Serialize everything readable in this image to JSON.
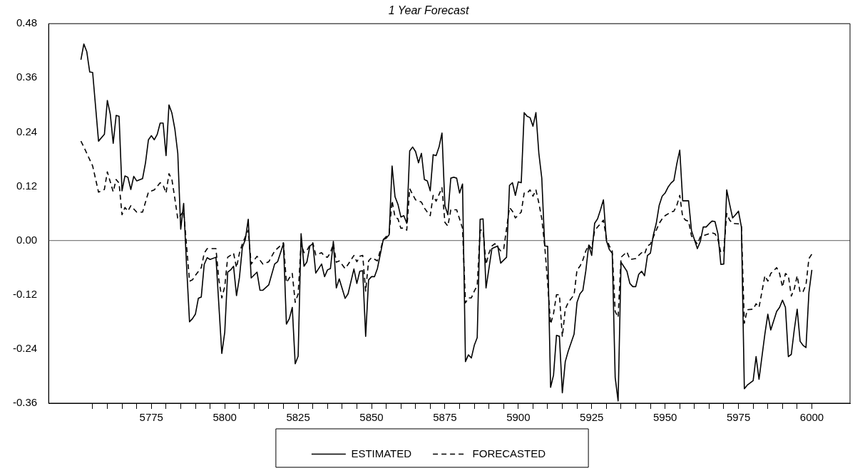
{
  "chart_data": {
    "type": "line",
    "title": "1 Year Forecast",
    "legend": "bottom",
    "marker": "none",
    "xlim": [
      5740,
      6013
    ],
    "ylim": [
      -0.36,
      0.48
    ],
    "xticks": [
      {
        "value": 5755,
        "label": null
      },
      {
        "value": 5760,
        "label": null
      },
      {
        "value": 5765,
        "label": null
      },
      {
        "value": 5770,
        "label": null
      },
      5775,
      {
        "value": 5780,
        "label": null
      },
      {
        "value": 5785,
        "label": null
      },
      {
        "value": 5790,
        "label": null
      },
      {
        "value": 5795,
        "label": null
      },
      5800,
      {
        "value": 5805,
        "label": null
      },
      {
        "value": 5810,
        "label": null
      },
      {
        "value": 5815,
        "label": null
      },
      {
        "value": 5820,
        "label": null
      },
      5825,
      {
        "value": 5830,
        "label": null
      },
      {
        "value": 5835,
        "label": null
      },
      {
        "value": 5840,
        "label": null
      },
      {
        "value": 5845,
        "label": null
      },
      5850,
      {
        "value": 5855,
        "label": null
      },
      {
        "value": 5860,
        "label": null
      },
      {
        "value": 5865,
        "label": null
      },
      {
        "value": 5870,
        "label": null
      },
      5875,
      {
        "value": 5880,
        "label": null
      },
      {
        "value": 5885,
        "label": null
      },
      {
        "value": 5890,
        "label": null
      },
      {
        "value": 5895,
        "label": null
      },
      5900,
      {
        "value": 5905,
        "label": null
      },
      {
        "value": 5910,
        "label": null
      },
      {
        "value": 5915,
        "label": null
      },
      {
        "value": 5920,
        "label": null
      },
      5925,
      {
        "value": 5930,
        "label": null
      },
      {
        "value": 5935,
        "label": null
      },
      {
        "value": 5940,
        "label": null
      },
      {
        "value": 5945,
        "label": null
      },
      5950,
      {
        "value": 5955,
        "label": null
      },
      {
        "value": 5960,
        "label": null
      },
      {
        "value": 5965,
        "label": null
      },
      {
        "value": 5970,
        "label": null
      },
      5975,
      {
        "value": 5980,
        "label": null
      },
      {
        "value": 5985,
        "label": null
      },
      {
        "value": 5990,
        "label": null
      },
      {
        "value": 5995,
        "label": null
      },
      6000
    ],
    "yticks": [
      {
        "value": -0.36,
        "label": "-0.36"
      },
      {
        "value": -0.24,
        "label": "-0.24"
      },
      {
        "value": -0.12,
        "label": "-0.12"
      },
      {
        "value": 0,
        "label": "0.00"
      },
      {
        "value": 0.12,
        "label": "0.12"
      },
      {
        "value": 0.24,
        "label": "0.24"
      },
      {
        "value": 0.36,
        "label": "0.36"
      },
      {
        "value": 0.48,
        "label": "0.48"
      }
    ],
    "ref_lines": [
      {
        "axis": "y",
        "value": 0,
        "color": "#808080",
        "line_style": "solid"
      }
    ],
    "series": [
      {
        "name": "ESTIMATED",
        "color": "#000000",
        "line_style": "solid",
        "x": [
          5751,
          5752,
          5753,
          5754,
          5755,
          5757,
          5759,
          5760,
          5761,
          5762,
          5763,
          5764,
          5765,
          5766,
          5767,
          5768,
          5769,
          5770,
          5772,
          5773,
          5774,
          5775,
          5776,
          5777,
          5778,
          5779,
          5780,
          5781,
          5782,
          5783,
          5784,
          5785,
          5786,
          5787,
          5788,
          5789,
          5790,
          5791,
          5792,
          5793,
          5794,
          5795,
          5797,
          5799,
          5800,
          5801,
          5802,
          5803,
          5804,
          5805,
          5806,
          5807,
          5808,
          5809,
          5811,
          5812,
          5813,
          5815,
          5817,
          5818,
          5820,
          5821,
          5822,
          5823,
          5824,
          5825,
          5826,
          5827,
          5828,
          5829,
          5830,
          5831,
          5833,
          5834,
          5835,
          5836,
          5837,
          5838,
          5839,
          5841,
          5842,
          5844,
          5845,
          5846,
          5847,
          5848,
          5849,
          5850,
          5851,
          5852,
          5854,
          5855,
          5856,
          5857,
          5858,
          5859,
          5860,
          5861,
          5862,
          5863,
          5864,
          5865,
          5866,
          5867,
          5868,
          5869,
          5870,
          5871,
          5872,
          5873,
          5874,
          5875,
          5876,
          5877,
          5878,
          5879,
          5880,
          5881,
          5882,
          5883,
          5884,
          5885,
          5886,
          5887,
          5888,
          5889,
          5890,
          5891,
          5893,
          5894,
          5896,
          5897,
          5898,
          5899,
          5900,
          5901,
          5902,
          5903,
          5904,
          5905,
          5906,
          5907,
          5908,
          5909,
          5910,
          5911,
          5912,
          5913,
          5914,
          5915,
          5916,
          5917,
          5919,
          5920,
          5921,
          5922,
          5923,
          5924,
          5925,
          5926,
          5927,
          5928,
          5929,
          5930,
          5931,
          5932,
          5933,
          5934,
          5935,
          5937,
          5938,
          5939,
          5940,
          5941,
          5942,
          5943,
          5944,
          5945,
          5946,
          5947,
          5948,
          5949,
          5950,
          5951,
          5952,
          5953,
          5954,
          5955,
          5956,
          5957,
          5958,
          5959,
          5961,
          5962,
          5963,
          5964,
          5965,
          5966,
          5967,
          5968,
          5969,
          5970,
          5971,
          5972,
          5973,
          5974,
          5975,
          5976,
          5977,
          5978,
          5980,
          5981,
          5982,
          5984,
          5985,
          5986,
          5988,
          5989,
          5990,
          5991,
          5992,
          5993,
          5994,
          5995,
          5996,
          5997,
          5998,
          5999,
          6000
        ],
        "values": [
          0.4,
          0.435,
          0.418,
          0.373,
          0.372,
          0.22,
          0.235,
          0.31,
          0.28,
          0.215,
          0.277,
          0.275,
          0.11,
          0.143,
          0.14,
          0.113,
          0.142,
          0.132,
          0.137,
          0.172,
          0.223,
          0.232,
          0.223,
          0.235,
          0.26,
          0.26,
          0.188,
          0.3,
          0.282,
          0.247,
          0.193,
          0.025,
          0.082,
          -0.057,
          -0.18,
          -0.173,
          -0.163,
          -0.128,
          -0.125,
          -0.053,
          -0.038,
          -0.042,
          -0.037,
          -0.25,
          -0.203,
          -0.07,
          -0.065,
          -0.057,
          -0.122,
          -0.082,
          -0.015,
          0.002,
          0.047,
          -0.083,
          -0.07,
          -0.11,
          -0.11,
          -0.098,
          -0.052,
          -0.047,
          -0.007,
          -0.185,
          -0.173,
          -0.148,
          -0.273,
          -0.256,
          0.015,
          -0.057,
          -0.047,
          -0.012,
          -0.007,
          -0.072,
          -0.052,
          -0.08,
          -0.065,
          -0.062,
          -0.002,
          -0.105,
          -0.085,
          -0.128,
          -0.118,
          -0.063,
          -0.095,
          -0.068,
          -0.067,
          -0.212,
          -0.087,
          -0.08,
          -0.08,
          -0.062,
          0.002,
          0.005,
          0.013,
          0.165,
          0.097,
          0.08,
          0.052,
          0.055,
          0.038,
          0.198,
          0.207,
          0.197,
          0.172,
          0.193,
          0.135,
          0.132,
          0.11,
          0.19,
          0.188,
          0.207,
          0.238,
          0.077,
          0.057,
          0.138,
          0.14,
          0.138,
          0.105,
          0.125,
          -0.268,
          -0.253,
          -0.26,
          -0.232,
          -0.215,
          0.047,
          0.048,
          -0.105,
          -0.062,
          -0.018,
          -0.012,
          -0.05,
          -0.037,
          0.122,
          0.128,
          0.1,
          0.13,
          0.128,
          0.283,
          0.275,
          0.272,
          0.253,
          0.283,
          0.193,
          0.138,
          -0.012,
          -0.013,
          -0.325,
          -0.298,
          -0.21,
          -0.212,
          -0.337,
          -0.268,
          -0.245,
          -0.207,
          -0.137,
          -0.118,
          -0.11,
          -0.067,
          -0.01,
          -0.033,
          0.038,
          0.048,
          0.068,
          0.09,
          0.0,
          -0.02,
          -0.028,
          -0.303,
          -0.355,
          -0.048,
          -0.068,
          -0.095,
          -0.102,
          -0.102,
          -0.075,
          -0.068,
          -0.078,
          -0.033,
          -0.028,
          0.012,
          0.038,
          0.078,
          0.098,
          0.105,
          0.118,
          0.127,
          0.133,
          0.17,
          0.2,
          0.088,
          0.088,
          0.088,
          0.022,
          -0.018,
          -0.002,
          0.03,
          0.03,
          0.037,
          0.043,
          0.042,
          0.015,
          -0.053,
          -0.052,
          0.112,
          0.08,
          0.05,
          0.057,
          0.065,
          0.03,
          -0.328,
          -0.32,
          -0.31,
          -0.257,
          -0.307,
          -0.207,
          -0.163,
          -0.198,
          -0.157,
          -0.148,
          -0.132,
          -0.148,
          -0.257,
          -0.252,
          -0.198,
          -0.152,
          -0.223,
          -0.232,
          -0.237,
          -0.115,
          -0.065
        ]
      },
      {
        "name": "FORECASTED",
        "color": "#000000",
        "line_style": "dashed",
        "x": [
          5751,
          5752,
          5753,
          5755,
          5757,
          5759,
          5760,
          5762,
          5763,
          5764,
          5765,
          5766,
          5767,
          5768,
          5770,
          5772,
          5774,
          5776,
          5778,
          5779,
          5780,
          5781,
          5782,
          5783,
          5784,
          5786,
          5787,
          5788,
          5789,
          5790,
          5792,
          5793,
          5794,
          5797,
          5798,
          5799,
          5800,
          5801,
          5803,
          5804,
          5805,
          5806,
          5808,
          5809,
          5811,
          5813,
          5815,
          5817,
          5820,
          5821,
          5823,
          5824,
          5825,
          5826,
          5827,
          5828,
          5829,
          5830,
          5831,
          5833,
          5834,
          5835,
          5836,
          5837,
          5838,
          5839,
          5841,
          5842,
          5844,
          5845,
          5846,
          5847,
          5848,
          5849,
          5850,
          5852,
          5854,
          5856,
          5857,
          5858,
          5859,
          5860,
          5861,
          5862,
          5863,
          5864,
          5865,
          5867,
          5868,
          5869,
          5870,
          5871,
          5872,
          5874,
          5875,
          5876,
          5877,
          5879,
          5881,
          5882,
          5883,
          5884,
          5885,
          5886,
          5887,
          5888,
          5889,
          5890,
          5891,
          5892,
          5894,
          5895,
          5897,
          5898,
          5899,
          5901,
          5902,
          5903,
          5904,
          5905,
          5906,
          5907,
          5908,
          5909,
          5910,
          5911,
          5912,
          5913,
          5914,
          5915,
          5916,
          5917,
          5919,
          5920,
          5921,
          5922,
          5923,
          5924,
          5925,
          5926,
          5927,
          5929,
          5930,
          5931,
          5932,
          5933,
          5934,
          5935,
          5937,
          5938,
          5940,
          5941,
          5942,
          5943,
          5944,
          5945,
          5946,
          5948,
          5949,
          5950,
          5952,
          5953,
          5954,
          5955,
          5956,
          5957,
          5958,
          5959,
          5961,
          5962,
          5964,
          5966,
          5967,
          5968,
          5969,
          5970,
          5971,
          5972,
          5973,
          5975,
          5976,
          5977,
          5978,
          5980,
          5981,
          5982,
          5984,
          5985,
          5986,
          5987,
          5988,
          5989,
          5990,
          5991,
          5992,
          5993,
          5994,
          5995,
          5996,
          5997,
          5998,
          5999,
          6000
        ],
        "values": [
          0.22,
          0.207,
          0.193,
          0.165,
          0.107,
          0.113,
          0.152,
          0.108,
          0.135,
          0.127,
          0.057,
          0.073,
          0.065,
          0.077,
          0.063,
          0.063,
          0.107,
          0.112,
          0.128,
          0.123,
          0.105,
          0.148,
          0.135,
          0.093,
          0.048,
          0.065,
          -0.012,
          -0.09,
          -0.087,
          -0.077,
          -0.06,
          -0.028,
          -0.018,
          -0.018,
          -0.087,
          -0.127,
          -0.102,
          -0.037,
          -0.028,
          -0.06,
          -0.028,
          -0.007,
          0.023,
          -0.052,
          -0.035,
          -0.052,
          -0.047,
          -0.023,
          -0.005,
          -0.093,
          -0.073,
          -0.137,
          -0.118,
          -0.007,
          -0.027,
          -0.022,
          -0.01,
          -0.005,
          -0.032,
          -0.027,
          -0.035,
          -0.037,
          -0.027,
          -0.007,
          -0.048,
          -0.045,
          -0.062,
          -0.053,
          -0.033,
          -0.047,
          -0.035,
          -0.033,
          -0.112,
          -0.045,
          -0.038,
          -0.045,
          0.002,
          0.015,
          0.088,
          0.052,
          0.048,
          0.027,
          0.028,
          0.023,
          0.115,
          0.102,
          0.09,
          0.085,
          0.072,
          0.063,
          0.055,
          0.1,
          0.087,
          0.117,
          0.04,
          0.032,
          0.068,
          0.068,
          0.027,
          -0.138,
          -0.127,
          -0.127,
          -0.112,
          -0.1,
          0.023,
          0.023,
          -0.053,
          -0.028,
          -0.012,
          -0.007,
          -0.023,
          -0.02,
          0.073,
          0.065,
          0.05,
          0.063,
          0.105,
          0.105,
          0.112,
          0.098,
          0.112,
          0.083,
          0.048,
          -0.012,
          -0.095,
          -0.185,
          -0.162,
          -0.12,
          -0.12,
          -0.213,
          -0.152,
          -0.137,
          -0.12,
          -0.065,
          -0.057,
          -0.043,
          -0.023,
          -0.01,
          -0.018,
          0.022,
          0.03,
          0.045,
          0.005,
          -0.012,
          -0.023,
          -0.157,
          -0.17,
          -0.037,
          -0.025,
          -0.042,
          -0.04,
          -0.033,
          -0.027,
          -0.03,
          -0.012,
          -0.008,
          0.008,
          0.038,
          0.048,
          0.055,
          0.063,
          0.065,
          0.078,
          0.1,
          0.052,
          0.045,
          0.043,
          0.01,
          -0.008,
          0.008,
          0.013,
          0.017,
          0.015,
          0.003,
          -0.027,
          -0.023,
          0.06,
          0.045,
          0.038,
          0.037,
          0.033,
          -0.183,
          -0.153,
          -0.152,
          -0.14,
          -0.148,
          -0.078,
          -0.09,
          -0.073,
          -0.067,
          -0.06,
          -0.073,
          -0.103,
          -0.073,
          -0.078,
          -0.123,
          -0.107,
          -0.078,
          -0.115,
          -0.113,
          -0.098,
          -0.04,
          -0.03
        ]
      }
    ]
  }
}
